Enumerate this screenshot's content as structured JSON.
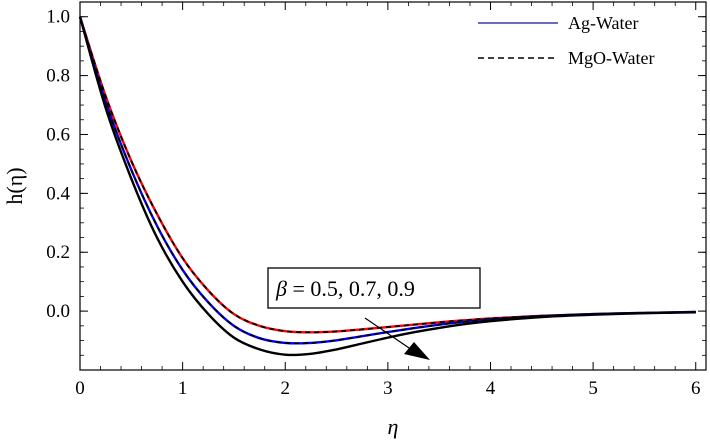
{
  "chart_data": {
    "type": "line",
    "xlabel": "η",
    "ylabel": "h(η)",
    "xlim": [
      0,
      6.1
    ],
    "ylim": [
      -0.2,
      1.05
    ],
    "x_ticks": [
      "0",
      "1",
      "2",
      "3",
      "4",
      "5",
      "6"
    ],
    "y_ticks": [
      "1.0",
      "0.8",
      "0.6",
      "0.4",
      "0.2",
      "0.0"
    ],
    "grid": false,
    "legend_position": "top-right",
    "legend": [
      {
        "label": "Ag-Water",
        "style": "solid",
        "color": "#3b3bb0"
      },
      {
        "label": "MgO-Water",
        "style": "dashed",
        "color": "#000000"
      }
    ],
    "annotation": {
      "beta_symbol": "β",
      "text": " = 0.5, 0.7, 0.9",
      "arrow_direction": "increasing β lowers h(η)"
    },
    "x": [
      0,
      0.25,
      0.5,
      0.75,
      1.0,
      1.25,
      1.5,
      1.75,
      2.0,
      2.25,
      2.5,
      2.75,
      3.0,
      3.25,
      3.5,
      3.75,
      4.0,
      4.5,
      5.0,
      5.5,
      6.0
    ],
    "series": [
      {
        "style": "solid",
        "color": "#ff0000",
        "values": [
          1.0,
          0.73,
          0.51,
          0.33,
          0.18,
          0.07,
          -0.01,
          -0.05,
          -0.068,
          -0.072,
          -0.069,
          -0.062,
          -0.054,
          -0.046,
          -0.038,
          -0.031,
          -0.025,
          -0.016,
          -0.01,
          -0.006,
          -0.003
        ]
      },
      {
        "style": "solid",
        "color": "#0000ff",
        "values": [
          1.0,
          0.71,
          0.48,
          0.29,
          0.14,
          0.03,
          -0.05,
          -0.092,
          -0.108,
          -0.108,
          -0.099,
          -0.085,
          -0.071,
          -0.058,
          -0.046,
          -0.036,
          -0.028,
          -0.017,
          -0.01,
          -0.006,
          -0.003
        ]
      },
      {
        "style": "solid",
        "color": "#000000",
        "values": [
          1.0,
          0.69,
          0.45,
          0.25,
          0.1,
          -0.01,
          -0.09,
          -0.13,
          -0.148,
          -0.145,
          -0.13,
          -0.11,
          -0.09,
          -0.072,
          -0.057,
          -0.044,
          -0.034,
          -0.02,
          -0.012,
          -0.007,
          -0.004
        ]
      },
      {
        "style": "dashed",
        "color": "#000000",
        "values": [
          1.0,
          0.73,
          0.51,
          0.33,
          0.18,
          0.07,
          -0.01,
          -0.05,
          -0.068,
          -0.072,
          -0.069,
          -0.062,
          -0.054,
          -0.046,
          -0.038,
          -0.031,
          -0.025,
          -0.016,
          -0.01,
          -0.006,
          -0.003
        ]
      },
      {
        "style": "dashed",
        "color": "#000000",
        "values": [
          1.0,
          0.71,
          0.48,
          0.29,
          0.14,
          0.03,
          -0.05,
          -0.092,
          -0.108,
          -0.108,
          -0.099,
          -0.085,
          -0.071,
          -0.058,
          -0.046,
          -0.036,
          -0.028,
          -0.017,
          -0.01,
          -0.006,
          -0.003
        ]
      },
      {
        "style": "dashed",
        "color": "#000000",
        "values": [
          1.0,
          0.69,
          0.45,
          0.25,
          0.1,
          -0.01,
          -0.09,
          -0.13,
          -0.148,
          -0.145,
          -0.13,
          -0.11,
          -0.09,
          -0.072,
          -0.057,
          -0.044,
          -0.034,
          -0.02,
          -0.012,
          -0.007,
          -0.004
        ]
      }
    ]
  }
}
